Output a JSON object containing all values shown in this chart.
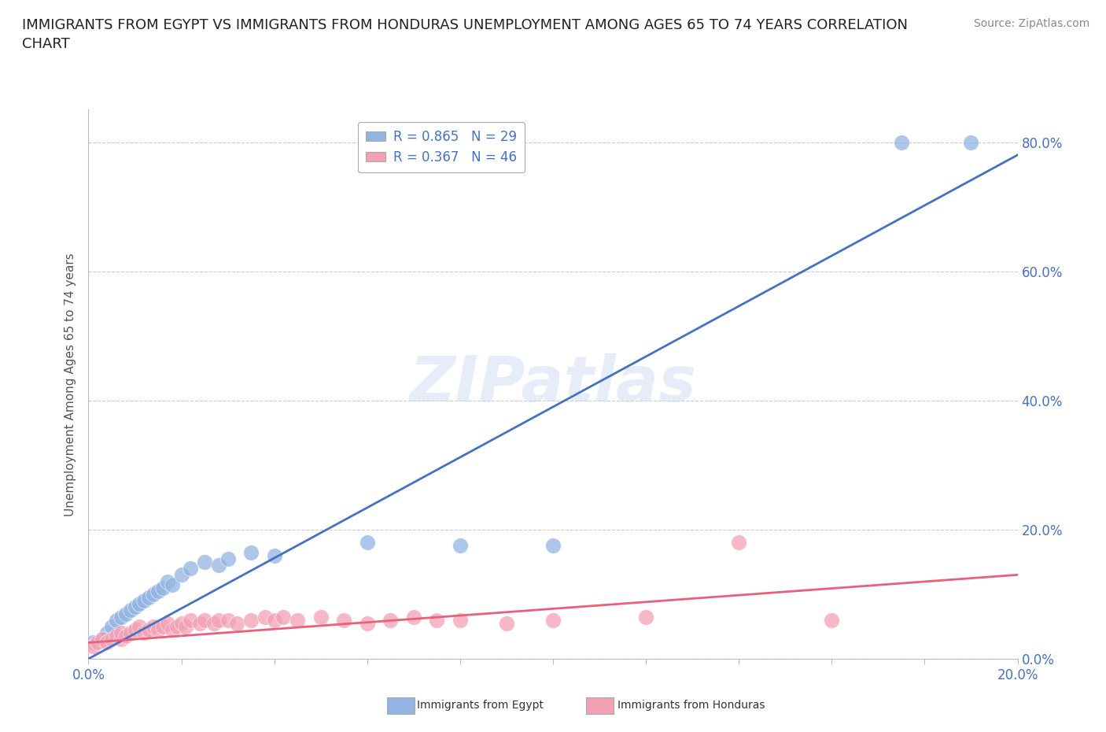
{
  "title": "IMMIGRANTS FROM EGYPT VS IMMIGRANTS FROM HONDURAS UNEMPLOYMENT AMONG AGES 65 TO 74 YEARS CORRELATION\nCHART",
  "source": "Source: ZipAtlas.com",
  "ylabel": "Unemployment Among Ages 65 to 74 years",
  "xlim": [
    0.0,
    0.2
  ],
  "ylim": [
    0.0,
    0.85
  ],
  "ytick_labels": [
    "0.0%",
    "20.0%",
    "40.0%",
    "60.0%",
    "80.0%"
  ],
  "ytick_values": [
    0.0,
    0.2,
    0.4,
    0.6,
    0.8
  ],
  "xtick_labels": [
    "0.0%",
    "20.0%"
  ],
  "xtick_values": [
    0.0,
    0.2
  ],
  "watermark": "ZIPatlas",
  "egypt_color": "#92b4e3",
  "honduras_color": "#f4a0b5",
  "egypt_line_color": "#4472c4",
  "honduras_line_color": "#e8607a",
  "egypt_R": 0.865,
  "egypt_N": 29,
  "honduras_R": 0.367,
  "honduras_N": 46,
  "egypt_line_x0": 0.0,
  "egypt_line_y0": 0.0,
  "egypt_line_x1": 0.2,
  "egypt_line_y1": 0.78,
  "honduras_line_x0": 0.0,
  "honduras_line_y0": 0.025,
  "honduras_line_x1": 0.2,
  "honduras_line_y1": 0.13,
  "egypt_scatter_x": [
    0.001,
    0.003,
    0.004,
    0.005,
    0.006,
    0.007,
    0.008,
    0.009,
    0.01,
    0.011,
    0.012,
    0.013,
    0.014,
    0.015,
    0.016,
    0.017,
    0.018,
    0.02,
    0.022,
    0.025,
    0.028,
    0.03,
    0.035,
    0.04,
    0.06,
    0.08,
    0.1,
    0.175,
    0.19
  ],
  "egypt_scatter_y": [
    0.025,
    0.03,
    0.04,
    0.05,
    0.06,
    0.065,
    0.07,
    0.075,
    0.08,
    0.085,
    0.09,
    0.095,
    0.1,
    0.105,
    0.11,
    0.12,
    0.115,
    0.13,
    0.14,
    0.15,
    0.145,
    0.155,
    0.165,
    0.16,
    0.18,
    0.175,
    0.175,
    0.8,
    0.8
  ],
  "honduras_scatter_x": [
    0.001,
    0.002,
    0.003,
    0.004,
    0.005,
    0.006,
    0.007,
    0.007,
    0.008,
    0.009,
    0.01,
    0.011,
    0.012,
    0.013,
    0.014,
    0.015,
    0.016,
    0.017,
    0.018,
    0.019,
    0.02,
    0.021,
    0.022,
    0.024,
    0.025,
    0.027,
    0.028,
    0.03,
    0.032,
    0.035,
    0.038,
    0.04,
    0.042,
    0.045,
    0.05,
    0.055,
    0.06,
    0.065,
    0.07,
    0.075,
    0.08,
    0.09,
    0.1,
    0.12,
    0.14,
    0.16
  ],
  "honduras_scatter_y": [
    0.02,
    0.025,
    0.03,
    0.025,
    0.03,
    0.035,
    0.03,
    0.04,
    0.035,
    0.04,
    0.045,
    0.05,
    0.04,
    0.045,
    0.05,
    0.045,
    0.05,
    0.055,
    0.045,
    0.05,
    0.055,
    0.05,
    0.06,
    0.055,
    0.06,
    0.055,
    0.06,
    0.06,
    0.055,
    0.06,
    0.065,
    0.06,
    0.065,
    0.06,
    0.065,
    0.06,
    0.055,
    0.06,
    0.065,
    0.06,
    0.06,
    0.055,
    0.06,
    0.065,
    0.18,
    0.06
  ],
  "background_color": "#ffffff",
  "grid_color": "#cccccc",
  "title_fontsize": 13,
  "axis_label_fontsize": 11,
  "tick_fontsize": 12,
  "legend_fontsize": 12,
  "source_fontsize": 10
}
